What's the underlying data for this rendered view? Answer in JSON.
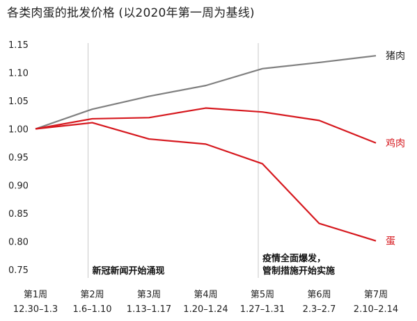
{
  "title": "各类肉蛋的批发价格 (以2020年第一周为基线)",
  "chart_data": {
    "type": "line",
    "categories": [
      {
        "week": "第1周",
        "range": "12.30–1.3"
      },
      {
        "week": "第2周",
        "range": "1.6–1.10"
      },
      {
        "week": "第3周",
        "range": "1.13–1.17"
      },
      {
        "week": "第4周",
        "range": "1.20–1.24"
      },
      {
        "week": "第5周",
        "range": "1.27–1.31"
      },
      {
        "week": "第6周",
        "range": "2.3–2.7"
      },
      {
        "week": "第7周",
        "range": "2.10–2.14"
      }
    ],
    "yticks": [
      "1.15",
      "1.10",
      "1.05",
      "1.00",
      "0.95",
      "0.90",
      "0.85",
      "0.80",
      "0.75"
    ],
    "ylim": [
      0.75,
      1.15
    ],
    "series": [
      {
        "name": "猪肉",
        "color": "#7f7f7f",
        "values": [
          1.0,
          1.035,
          1.058,
          1.077,
          1.107,
          1.118,
          1.13
        ]
      },
      {
        "name": "鸡肉",
        "color": "#d6181e",
        "values": [
          1.0,
          1.018,
          1.02,
          1.037,
          1.03,
          1.015,
          0.975
        ]
      },
      {
        "name": "蛋",
        "color": "#d6181e",
        "values": [
          1.0,
          1.011,
          0.982,
          0.973,
          0.938,
          0.832,
          0.801
        ]
      }
    ],
    "annotations": [
      {
        "at": 1,
        "lines": [
          "新冠新闻开始涌现"
        ]
      },
      {
        "at": 4,
        "lines": [
          "疫情全面爆发，",
          "管制措施开始实施"
        ]
      }
    ],
    "grid": false
  }
}
